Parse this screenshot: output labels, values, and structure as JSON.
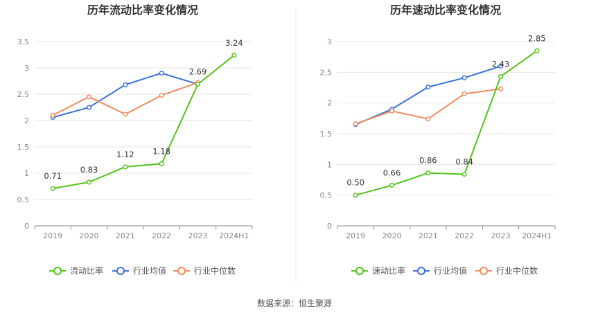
{
  "source_text": "数据来源：恒生聚源",
  "chart_data": [
    {
      "type": "line",
      "title": "历年流动比率变化情况",
      "categories": [
        "2019",
        "2020",
        "2021",
        "2022",
        "2023",
        "2024H1"
      ],
      "ylim": [
        0,
        3.5
      ],
      "yticks": [
        "0",
        "0.5",
        "1",
        "1.5",
        "2",
        "2.5",
        "3",
        "3.5"
      ],
      "grid": true,
      "legend_position": "bottom",
      "series": [
        {
          "name": "流动比率",
          "color": "#52c41a",
          "values": [
            0.71,
            0.83,
            1.12,
            1.18,
            2.69,
            3.24
          ],
          "labels": [
            "0.71",
            "0.83",
            "1.12",
            "1.18",
            "2.69",
            "3.24"
          ]
        },
        {
          "name": "行业均值",
          "color": "#3a72d8",
          "values": [
            2.06,
            2.25,
            2.68,
            2.9,
            2.69,
            null
          ]
        },
        {
          "name": "行业中位数",
          "color": "#f08a5d",
          "values": [
            2.1,
            2.45,
            2.12,
            2.48,
            2.72,
            null
          ]
        }
      ]
    },
    {
      "type": "line",
      "title": "历年速动比率变化情况",
      "categories": [
        "2019",
        "2020",
        "2021",
        "2022",
        "2023",
        "2024H1"
      ],
      "ylim": [
        0,
        3
      ],
      "yticks": [
        "0",
        "0.5",
        "1",
        "1.5",
        "2",
        "2.5",
        "3"
      ],
      "grid": true,
      "legend_position": "bottom",
      "series": [
        {
          "name": "速动比率",
          "color": "#52c41a",
          "values": [
            0.5,
            0.66,
            0.86,
            0.84,
            2.43,
            2.85
          ],
          "labels": [
            "0.50",
            "0.66",
            "0.86",
            "0.84",
            "2.43",
            "2.85"
          ]
        },
        {
          "name": "行业均值",
          "color": "#3a72d8",
          "values": [
            1.65,
            1.9,
            2.26,
            2.41,
            2.6,
            null
          ]
        },
        {
          "name": "行业中位数",
          "color": "#f08a5d",
          "values": [
            1.66,
            1.87,
            1.74,
            2.15,
            2.23,
            null
          ]
        }
      ]
    }
  ]
}
